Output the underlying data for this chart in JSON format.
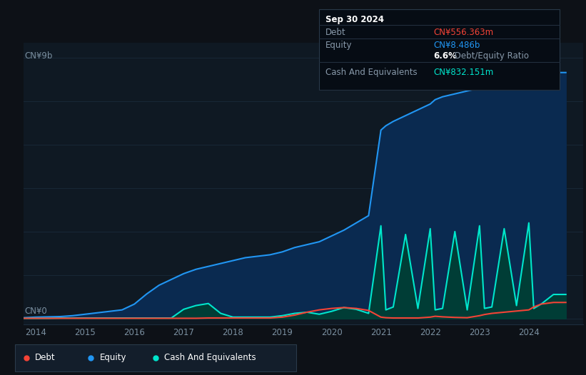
{
  "background_color": "#0d1117",
  "plot_bg_color": "#0f1923",
  "title_box": {
    "date": "Sep 30 2024",
    "debt_label": "Debt",
    "debt_value": "CN¥556.363m",
    "equity_label": "Equity",
    "equity_value": "CN¥8.486b",
    "ratio_bold": "6.6%",
    "ratio_rest": " Debt/Equity Ratio",
    "cash_label": "Cash And Equivalents",
    "cash_value": "CN¥832.151m"
  },
  "ylabel_top": "CN¥9b",
  "ylabel_bottom": "CN¥0",
  "x_ticks": [
    2014,
    2015,
    2016,
    2017,
    2018,
    2019,
    2020,
    2021,
    2022,
    2023,
    2024
  ],
  "equity_color": "#2196f3",
  "equity_fill": "#0a2a50",
  "debt_color": "#f44336",
  "cash_color": "#00e5cc",
  "cash_fill": "#003d36",
  "legend_bg": "#131e2b",
  "grid_color": "#1a2a3a",
  "years": [
    2013.75,
    2014.0,
    2014.25,
    2014.5,
    2014.75,
    2015.0,
    2015.25,
    2015.5,
    2015.75,
    2016.0,
    2016.25,
    2016.5,
    2016.75,
    2017.0,
    2017.25,
    2017.5,
    2017.75,
    2018.0,
    2018.25,
    2018.5,
    2018.75,
    2019.0,
    2019.25,
    2019.5,
    2019.75,
    2020.0,
    2020.25,
    2020.5,
    2020.75,
    2021.0,
    2021.1,
    2021.25,
    2021.5,
    2021.75,
    2022.0,
    2022.1,
    2022.25,
    2022.5,
    2022.75,
    2023.0,
    2023.1,
    2023.25,
    2023.5,
    2023.75,
    2024.0,
    2024.1,
    2024.25,
    2024.5,
    2024.75
  ],
  "equity_values": [
    0.03,
    0.05,
    0.06,
    0.07,
    0.1,
    0.15,
    0.2,
    0.25,
    0.3,
    0.5,
    0.85,
    1.15,
    1.35,
    1.55,
    1.7,
    1.8,
    1.9,
    2.0,
    2.1,
    2.15,
    2.2,
    2.3,
    2.45,
    2.55,
    2.65,
    2.85,
    3.05,
    3.3,
    3.55,
    6.5,
    6.65,
    6.8,
    7.0,
    7.2,
    7.4,
    7.55,
    7.65,
    7.75,
    7.85,
    7.95,
    8.05,
    8.15,
    8.3,
    8.4,
    8.5,
    8.55,
    8.486,
    8.486,
    8.486
  ],
  "debt_values": [
    0.01,
    0.01,
    0.01,
    0.01,
    0.01,
    0.01,
    0.01,
    0.01,
    0.01,
    0.01,
    0.01,
    0.01,
    0.01,
    0.01,
    0.01,
    0.02,
    0.02,
    0.02,
    0.02,
    0.02,
    0.02,
    0.05,
    0.12,
    0.22,
    0.3,
    0.35,
    0.38,
    0.35,
    0.28,
    0.05,
    0.03,
    0.02,
    0.02,
    0.02,
    0.05,
    0.08,
    0.06,
    0.04,
    0.03,
    0.1,
    0.14,
    0.18,
    0.22,
    0.26,
    0.3,
    0.4,
    0.5,
    0.556,
    0.556
  ],
  "cash_values": [
    0.01,
    0.01,
    0.01,
    0.02,
    0.02,
    0.02,
    0.02,
    0.02,
    0.02,
    0.02,
    0.02,
    0.02,
    0.02,
    0.32,
    0.45,
    0.52,
    0.18,
    0.05,
    0.05,
    0.05,
    0.05,
    0.1,
    0.18,
    0.22,
    0.15,
    0.25,
    0.38,
    0.32,
    0.18,
    3.2,
    0.3,
    0.4,
    2.9,
    0.35,
    3.1,
    0.3,
    0.35,
    3.0,
    0.3,
    3.2,
    0.35,
    0.4,
    3.1,
    0.45,
    3.3,
    0.35,
    0.5,
    0.832,
    0.832
  ]
}
